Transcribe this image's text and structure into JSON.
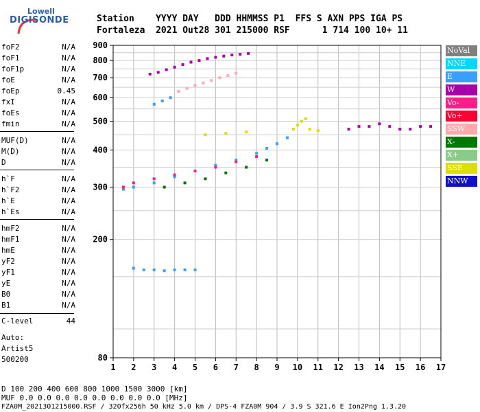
{
  "logo": {
    "top": "Lowell",
    "main": "DIGISONDE"
  },
  "header": {
    "line1": "Station    YYYY DAY   DDD HHMMSS P1  FFS S AXN PPS IGA PS",
    "line2": "Fortaleza  2021 Out28 301 215000 RSF      1 714 100 10+ 11"
  },
  "params_group1": [
    {
      "name": "foF2",
      "value": "N/A"
    },
    {
      "name": "foF1",
      "value": "N/A"
    },
    {
      "name": "foF1p",
      "value": "N/A"
    },
    {
      "name": "foE",
      "value": "N/A"
    },
    {
      "name": "foEp",
      "value": "0.45"
    },
    {
      "name": "fxI",
      "value": "N/A"
    },
    {
      "name": "foEs",
      "value": "N/A"
    },
    {
      "name": "fmin",
      "value": "N/A"
    }
  ],
  "params_group2": [
    {
      "name": "MUF(D)",
      "value": "N/A"
    },
    {
      "name": "M(D)",
      "value": "N/A"
    },
    {
      "name": "D",
      "value": "N/A"
    }
  ],
  "params_group3": [
    {
      "name": "h`F",
      "value": "N/A"
    },
    {
      "name": "h`F2",
      "value": "N/A"
    },
    {
      "name": "h`E",
      "value": "N/A"
    },
    {
      "name": "h`Es",
      "value": "N/A"
    }
  ],
  "params_group4": [
    {
      "name": "hmF2",
      "value": "N/A"
    },
    {
      "name": "hmF1",
      "value": "N/A"
    },
    {
      "name": "hmE",
      "value": "N/A"
    },
    {
      "name": "yF2",
      "value": "N/A"
    },
    {
      "name": "yF1",
      "value": "N/A"
    },
    {
      "name": "yE",
      "value": "N/A"
    },
    {
      "name": "B0",
      "value": "N/A"
    },
    {
      "name": "B1",
      "value": "N/A"
    }
  ],
  "clevel": {
    "name": "C-level",
    "value": "44"
  },
  "auto": {
    "line1": "Auto:",
    "line2": "Artist5",
    "line3": "500200"
  },
  "legend": [
    {
      "label": "NoVal",
      "color": "#808080"
    },
    {
      "label": "NNE",
      "color": "#00d8ff"
    },
    {
      "label": "E",
      "color": "#3aa0ff"
    },
    {
      "label": "W",
      "color": "#aa00aa"
    },
    {
      "label": "Vo-",
      "color": "#ff1d8a"
    },
    {
      "label": "Vo+",
      "color": "#ff0033"
    },
    {
      "label": "SSW",
      "color": "#ffaaaa"
    },
    {
      "label": "X-",
      "color": "#007700"
    },
    {
      "label": "X+",
      "color": "#88cc88"
    },
    {
      "label": "SSE",
      "color": "#dddd00"
    },
    {
      "label": "NNW",
      "color": "#1010cc"
    }
  ],
  "footer": {
    "line1": "D     100  200  400  600  800 1000 1500 3000 [km]",
    "line2": "MUF   0.0  0.0  0.0  0.0  0.0  0.0  0.0  0.0 [MHz]",
    "line3": "FZA0M_2021301215000.RSF / 320fx256h 50 kHz 5.0 km / DPS-4 FZA0M 904 / 3.9 S 321.6 E   Ion2Png 1.3.20"
  },
  "chart_data": {
    "type": "scatter",
    "title": "",
    "xlabel": "",
    "ylabel": "",
    "xlim": [
      1,
      17
    ],
    "ylim": [
      80,
      900
    ],
    "xticks": [
      1,
      2,
      3,
      4,
      5,
      6,
      7,
      8,
      9,
      10,
      11,
      12,
      13,
      14,
      15,
      16,
      17
    ],
    "yticks": [
      80,
      200,
      300,
      400,
      500,
      600,
      700,
      800,
      900
    ],
    "y_scale": "log",
    "grid": true,
    "series": [
      {
        "name": "W",
        "color": "#aa00aa",
        "points": [
          [
            2.8,
            720
          ],
          [
            3.2,
            730
          ],
          [
            3.6,
            745
          ],
          [
            4.0,
            760
          ],
          [
            4.4,
            775
          ],
          [
            4.8,
            790
          ],
          [
            5.2,
            800
          ],
          [
            5.6,
            812
          ],
          [
            6.0,
            820
          ],
          [
            6.4,
            828
          ],
          [
            6.8,
            835
          ],
          [
            7.2,
            840
          ],
          [
            7.6,
            845
          ]
        ]
      },
      {
        "name": "SSW",
        "color": "#ffaaaa",
        "points": [
          [
            4.2,
            630
          ],
          [
            4.6,
            645
          ],
          [
            5.0,
            660
          ],
          [
            5.4,
            672
          ],
          [
            5.8,
            685
          ],
          [
            6.2,
            700
          ],
          [
            6.6,
            712
          ],
          [
            7.0,
            725
          ]
        ]
      },
      {
        "name": "E",
        "color": "#3aa0ff",
        "points": [
          [
            3.0,
            570
          ],
          [
            3.4,
            585
          ],
          [
            3.8,
            600
          ],
          [
            2.0,
            160
          ],
          [
            2.5,
            158
          ],
          [
            3.0,
            158
          ],
          [
            3.5,
            157
          ],
          [
            4.0,
            158
          ],
          [
            4.5,
            158
          ],
          [
            5.0,
            158
          ],
          [
            1.5,
            295
          ],
          [
            2.0,
            300
          ],
          [
            3.0,
            310
          ],
          [
            4.0,
            325
          ],
          [
            5.0,
            340
          ],
          [
            6.0,
            355
          ],
          [
            7.0,
            370
          ],
          [
            8.0,
            390
          ],
          [
            8.5,
            405
          ],
          [
            9.0,
            420
          ],
          [
            9.5,
            440
          ]
        ]
      },
      {
        "name": "Vo-",
        "color": "#ff1d8a",
        "points": [
          [
            1.5,
            300
          ],
          [
            2.0,
            310
          ],
          [
            3.0,
            320
          ],
          [
            4.0,
            330
          ],
          [
            5.0,
            340
          ],
          [
            6.0,
            350
          ],
          [
            7.0,
            365
          ],
          [
            8.0,
            380
          ]
        ]
      },
      {
        "name": "X-",
        "color": "#007700",
        "points": [
          [
            3.5,
            300
          ],
          [
            4.5,
            310
          ],
          [
            5.5,
            320
          ],
          [
            6.5,
            335
          ],
          [
            7.5,
            350
          ],
          [
            8.5,
            370
          ]
        ]
      },
      {
        "name": "SSE",
        "color": "#dddd00",
        "points": [
          [
            9.8,
            470
          ],
          [
            10.0,
            485
          ],
          [
            10.2,
            500
          ],
          [
            10.4,
            510
          ],
          [
            10.6,
            470
          ],
          [
            11.0,
            465
          ],
          [
            5.5,
            450
          ],
          [
            6.5,
            455
          ],
          [
            7.5,
            460
          ]
        ]
      },
      {
        "name": "W",
        "color": "#aa00aa",
        "points": [
          [
            12.5,
            470
          ],
          [
            13.0,
            480
          ],
          [
            13.5,
            480
          ],
          [
            14.0,
            490
          ],
          [
            14.5,
            480
          ],
          [
            15.0,
            470
          ],
          [
            15.5,
            470
          ],
          [
            16.0,
            480
          ],
          [
            16.5,
            480
          ]
        ]
      }
    ]
  }
}
